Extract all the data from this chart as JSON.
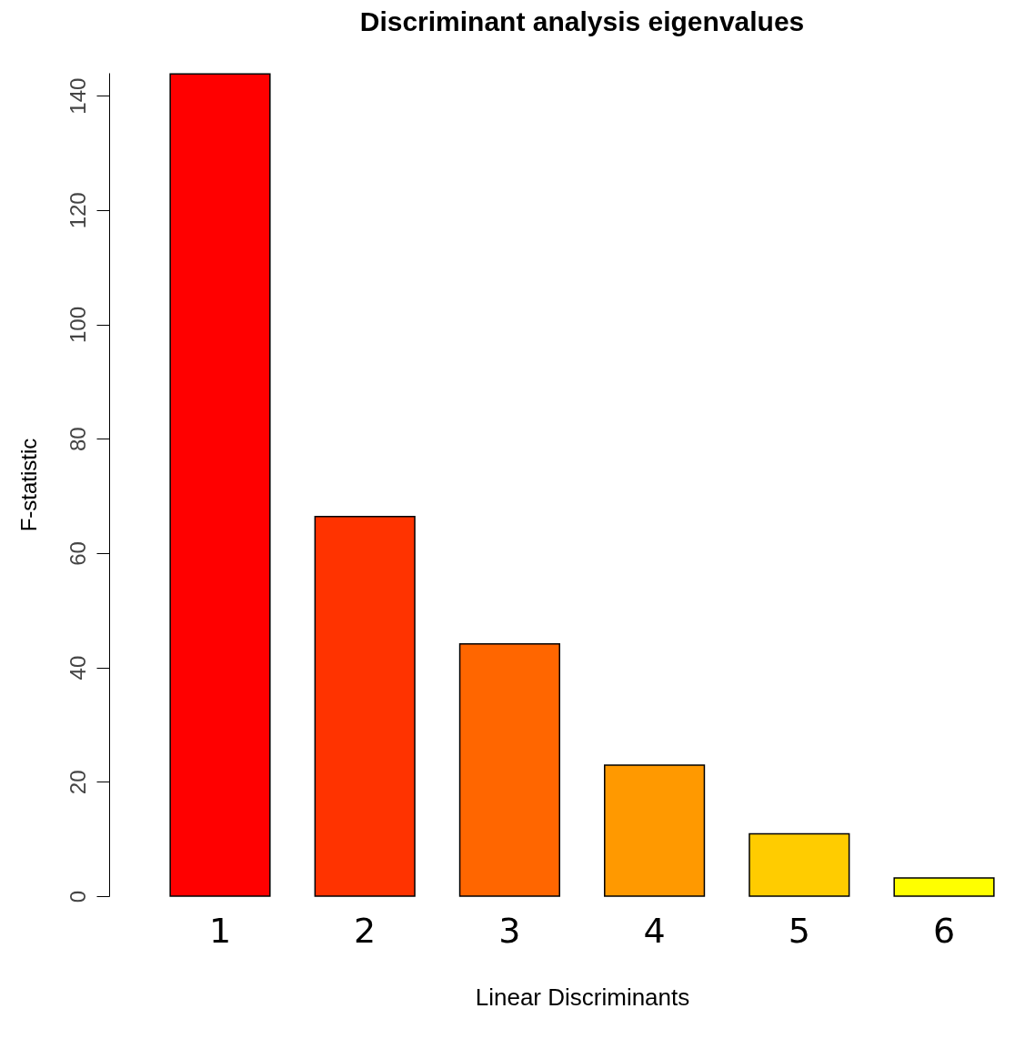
{
  "chart_data": {
    "type": "bar",
    "title": "Discriminant analysis eigenvalues",
    "xlabel": "Linear Discriminants",
    "ylabel": "F-statistic",
    "categories": [
      "1",
      "2",
      "3",
      "4",
      "5",
      "6"
    ],
    "values": [
      143.8,
      66.4,
      44.1,
      22.9,
      10.9,
      3.2
    ],
    "colors": [
      "#ff0000",
      "#ff3300",
      "#ff6600",
      "#ff9900",
      "#ffcc00",
      "#ffff00"
    ],
    "ylim": [
      0,
      144
    ],
    "yticks": [
      0,
      20,
      40,
      60,
      80,
      100,
      120,
      140
    ],
    "grid": false,
    "legend": false
  }
}
